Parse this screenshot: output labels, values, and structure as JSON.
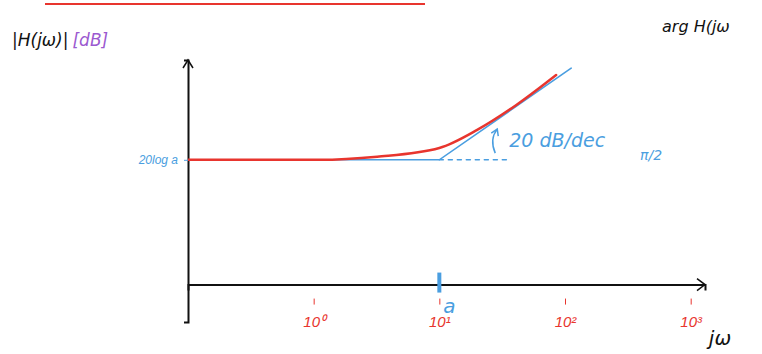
{
  "chart_data": {
    "type": "line",
    "log": "x",
    "grid": false,
    "ylabel": "|H(jω)|",
    "ylabel_unit": "[dB]",
    "xlabel": "jω",
    "xlim": [
      0.1,
      1300
    ],
    "ylim": [
      -6,
      36
    ],
    "xticks": [
      {
        "value": 1,
        "label": "10⁰"
      },
      {
        "value": 10,
        "label": "10¹"
      },
      {
        "value": 100,
        "label": "10²"
      },
      {
        "value": 1000,
        "label": "10³"
      }
    ],
    "yticks": [
      {
        "value": 20,
        "label": "20log a"
      }
    ],
    "series": [
      {
        "color": "#4a9ee0",
        "line_style": "solid",
        "x": [
          0.1,
          10,
          112
        ],
        "values": [
          20,
          20,
          34.7
        ]
      },
      {
        "color": "#4a9ee0",
        "line_style": "dashed",
        "x": [
          10,
          35
        ],
        "values": [
          20,
          20
        ]
      },
      {
        "color": "#e8352e",
        "line_style": "solid",
        "x": [
          0.1,
          0.31,
          1.1,
          3.2,
          10,
          20,
          41,
          85
        ],
        "values": [
          20,
          20,
          20,
          20.5,
          21.9,
          24.8,
          28.8,
          33.6
        ]
      }
    ],
    "annotations": [
      {
        "text": "20 dB/dec",
        "x": 36,
        "y": 23
      },
      {
        "text": "a",
        "x": 10,
        "y": -2.2
      }
    ],
    "side_texts": [
      "arg H(jω",
      "π/2"
    ]
  }
}
